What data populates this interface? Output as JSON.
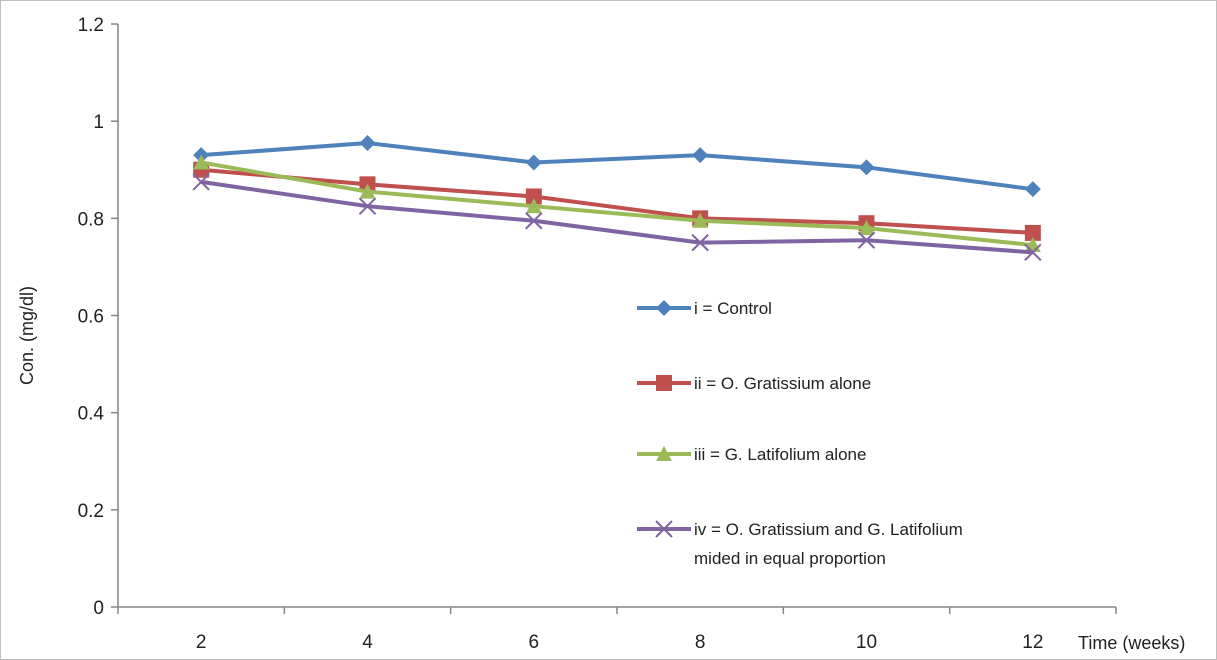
{
  "chart_data": {
    "type": "line",
    "title": "",
    "xlabel": "Time (weeks)",
    "ylabel": "Con. (mg/dl)",
    "x": [
      2,
      4,
      6,
      8,
      10,
      12
    ],
    "ylim": [
      0,
      1.2
    ],
    "yticks": [
      "0",
      "0.2",
      "0.4",
      "0.6",
      "0.8",
      "1",
      "1.2"
    ],
    "xticks": [
      "2",
      "4",
      "6",
      "8",
      "10",
      "12"
    ],
    "grid": false,
    "legend_placement": "center-right inside plot",
    "series": [
      {
        "name": "i  = Control",
        "name_line2": "",
        "color": "#4f81bd",
        "marker": "diamond",
        "values": [
          0.93,
          0.955,
          0.915,
          0.93,
          0.905,
          0.86
        ]
      },
      {
        "name": "ii = O. Gratissium alone",
        "name_line2": "",
        "color": "#c0504d",
        "marker": "square",
        "values": [
          0.9,
          0.87,
          0.845,
          0.8,
          0.79,
          0.77
        ]
      },
      {
        "name": "iii = G. Latifolium alone",
        "name_line2": "",
        "color": "#9bbb59",
        "marker": "triangle",
        "values": [
          0.915,
          0.855,
          0.825,
          0.795,
          0.78,
          0.745
        ]
      },
      {
        "name": "iv = O. Gratissium and G. Latifolium",
        "name_line2": "mided in equal proportion",
        "color": "#8064a2",
        "marker": "x",
        "values": [
          0.875,
          0.825,
          0.795,
          0.75,
          0.755,
          0.73
        ]
      }
    ]
  }
}
